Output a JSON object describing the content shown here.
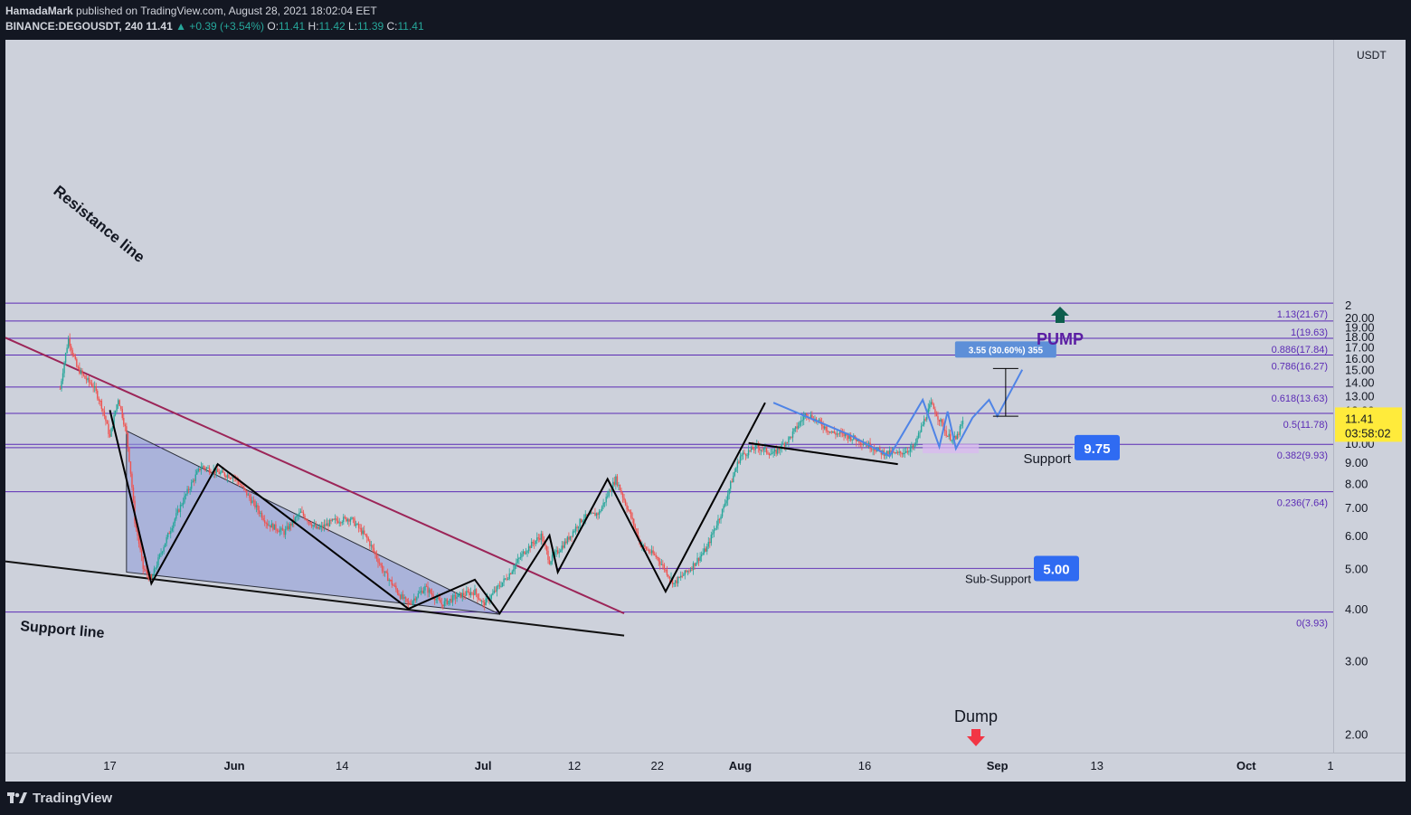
{
  "header": {
    "line1_author": "HamadaMark",
    "line1_rest": "published on TradingView.com, August 28, 2021 18:02:04 EET",
    "symbol": "BINANCE:DEGOUSDT, 240",
    "last": "11.41",
    "change": "▲ +0.39 (+3.54%)",
    "o_label": "O:",
    "o_val": "11.41",
    "h_label": "H:",
    "h_val": "11.42",
    "l_label": "L:",
    "l_val": "11.39",
    "c_label": "C:",
    "c_val": "11.41"
  },
  "footer": {
    "logo_text": "TradingView"
  },
  "colors": {
    "background": "#cdd1db",
    "fib_line": "#5b2bb5",
    "resistance": "#9c2558",
    "triangle_fill": "#8e9bd8",
    "projection": "#4f84e6",
    "badge_blue": "#2f6bf2",
    "price_badge": "#ffeb3b",
    "pump_arrow": "#0d5e4d",
    "dump_arrow": "#f23645",
    "pump_text": "#5b1ea3"
  },
  "chart_data": {
    "type": "candlestick",
    "y_unit": "USDT",
    "y_scale": "log",
    "ylim": [
      1.8,
      23.5
    ],
    "y_ticks": [
      "2.00",
      "3.00",
      "4.00",
      "5.00",
      "6.00",
      "7.00",
      "8.00",
      "9.00",
      "10.00",
      "11.00",
      "12.00",
      "13.00",
      "14.00",
      "15.00",
      "16.00",
      "17.00",
      "18.00",
      "19.00",
      "20.00"
    ],
    "top_tick_partial": "2",
    "x_ticks": [
      "17",
      "Jun",
      "14",
      "Jul",
      "12",
      "22",
      "Aug",
      "16",
      "Sep",
      "13",
      "Oct",
      "1"
    ],
    "current_price": "11.41",
    "countdown": "03:58:02",
    "fib_levels": [
      {
        "label": "1.13(21.67)",
        "value": 21.67
      },
      {
        "label": "1(19.63)",
        "value": 19.63
      },
      {
        "label": "0.886(17.84)",
        "value": 17.84
      },
      {
        "label": "0.786(16.27)",
        "value": 16.27
      },
      {
        "label": "0.618(13.63)",
        "value": 13.63
      },
      {
        "label": "0.5(11.78)",
        "value": 11.78
      },
      {
        "label": "0.382(9.93)",
        "value": 9.93
      },
      {
        "label": "0.236(7.64)",
        "value": 7.64
      },
      {
        "label": "0(3.93)",
        "value": 3.93
      }
    ],
    "annotations": {
      "resistance": "Resistance line",
      "support_line": "Support line",
      "support": "Support",
      "support_value": "9.75",
      "sub_support": "Sub-Support",
      "sub_support_value": "5.00",
      "pump": "PUMP",
      "dump": "Dump",
      "measure": "3.55 (30.60%) 355"
    },
    "price_path": [
      [
        "May 11",
        13.5
      ],
      [
        "May 12",
        17.8
      ],
      [
        "May 13",
        15.2
      ],
      [
        "May 14",
        14.3
      ],
      [
        "May 15",
        13.7
      ],
      [
        "May 16",
        12.3
      ],
      [
        "May 17",
        10.3
      ],
      [
        "May 18",
        12.8
      ],
      [
        "May 19",
        10.5
      ],
      [
        "May 20",
        6.5
      ],
      [
        "May 21",
        5.0
      ],
      [
        "May 22",
        4.7
      ],
      [
        "May 24",
        6.0
      ],
      [
        "May 26",
        7.4
      ],
      [
        "May 28",
        8.8
      ],
      [
        "May 30",
        8.5
      ],
      [
        "Jun 1",
        8.3
      ],
      [
        "Jun 3",
        7.3
      ],
      [
        "Jun 5",
        6.4
      ],
      [
        "Jun 7",
        6.1
      ],
      [
        "Jun 9",
        6.8
      ],
      [
        "Jun 11",
        6.2
      ],
      [
        "Jun 13",
        6.5
      ],
      [
        "Jun 15",
        6.6
      ],
      [
        "Jun 17",
        5.9
      ],
      [
        "Jun 19",
        4.9
      ],
      [
        "Jun 21",
        4.3
      ],
      [
        "Jun 22",
        4.1
      ],
      [
        "Jun 24",
        4.5
      ],
      [
        "Jun 26",
        4.1
      ],
      [
        "Jun 28",
        4.3
      ],
      [
        "Jun 30",
        4.4
      ],
      [
        "Jul 1",
        4.1
      ],
      [
        "Jul 2",
        4.3
      ],
      [
        "Jul 4",
        4.8
      ],
      [
        "Jul 6",
        5.5
      ],
      [
        "Jul 8",
        6.0
      ],
      [
        "Jul 9",
        5.2
      ],
      [
        "Jul 11",
        5.8
      ],
      [
        "Jul 13",
        6.6
      ],
      [
        "Jul 15",
        6.8
      ],
      [
        "Jul 17",
        8.2
      ],
      [
        "Jul 18",
        7.3
      ],
      [
        "Jul 20",
        5.7
      ],
      [
        "Jul 22",
        5.3
      ],
      [
        "Jul 24",
        4.6
      ],
      [
        "Jul 26",
        5.0
      ],
      [
        "Jul 28",
        5.6
      ],
      [
        "Jul 30",
        7.0
      ],
      [
        "Aug 1",
        9.3
      ],
      [
        "Aug 3",
        9.8
      ],
      [
        "Aug 5",
        9.4
      ],
      [
        "Aug 7",
        10.3
      ],
      [
        "Aug 9",
        11.8
      ],
      [
        "Aug 10",
        11.4
      ],
      [
        "Aug 12",
        10.6
      ],
      [
        "Aug 14",
        10.4
      ],
      [
        "Aug 16",
        10.0
      ],
      [
        "Aug 18",
        9.5
      ],
      [
        "Aug 20",
        9.4
      ],
      [
        "Aug 22",
        9.8
      ],
      [
        "Aug 24",
        12.4
      ],
      [
        "Aug 26",
        10.4
      ],
      [
        "Aug 27",
        10.2
      ],
      [
        "Aug 28",
        11.41
      ]
    ]
  }
}
